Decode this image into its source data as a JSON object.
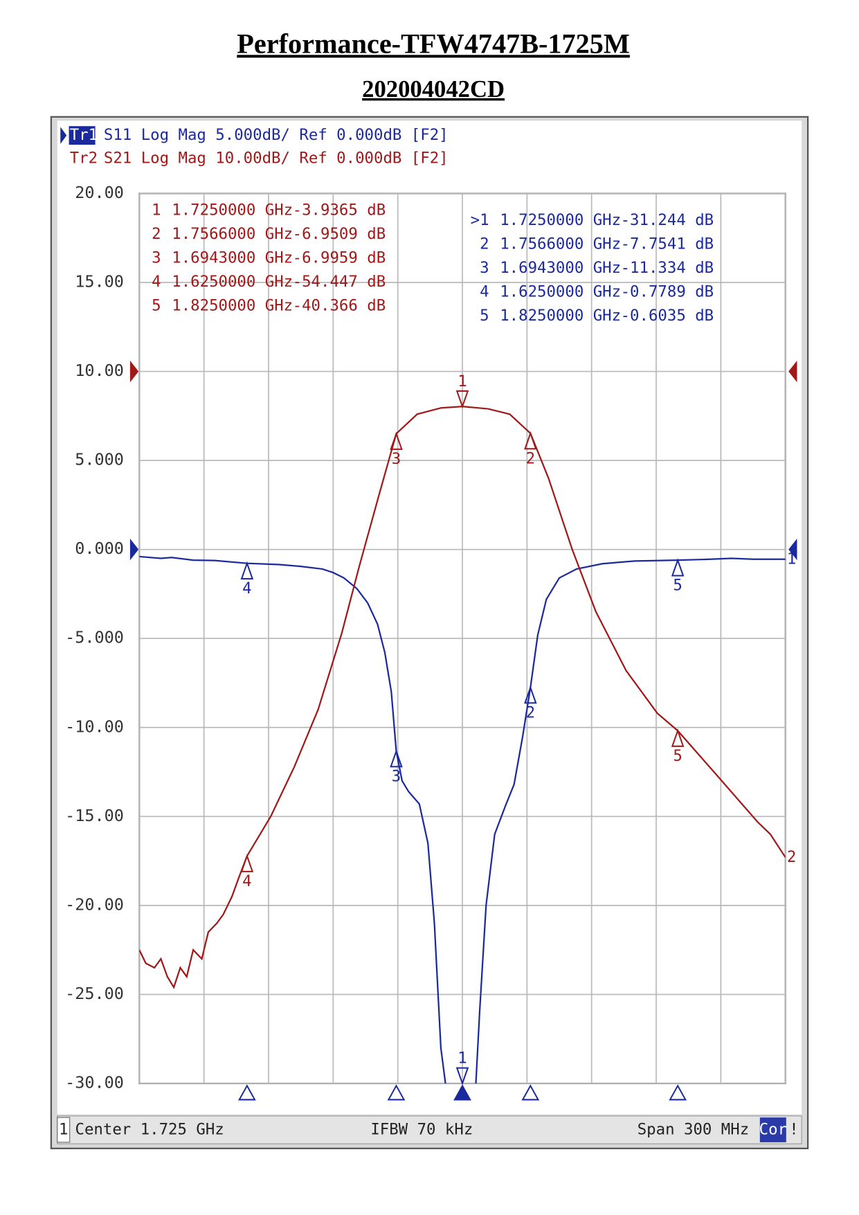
{
  "chart_data": {
    "type": "line",
    "title": "Performance-TFW4747B-1725M",
    "subtitle": "202004042CD",
    "xlim": [
      1.575,
      1.875
    ],
    "xticks": [
      1.575,
      1.605,
      1.635,
      1.665,
      1.695,
      1.725,
      1.755,
      1.785,
      1.815,
      1.845,
      1.875
    ],
    "ylim": [
      -30,
      20
    ],
    "yticks": [
      {
        "value": 20,
        "label": "20.00"
      },
      {
        "value": 15,
        "label": "15.00"
      },
      {
        "value": 10,
        "label": "10.00"
      },
      {
        "value": 5,
        "label": "5.000"
      },
      {
        "value": 0,
        "label": "0.000"
      },
      {
        "value": -5,
        "label": "-5.000"
      },
      {
        "value": -10,
        "label": "-10.00"
      },
      {
        "value": -15,
        "label": "-15.00"
      },
      {
        "value": -20,
        "label": "-20.00"
      },
      {
        "value": -25,
        "label": "-25.00"
      },
      {
        "value": -30,
        "label": "-30.00"
      }
    ],
    "y2lim": [
      -80,
      20
    ],
    "grid": true,
    "series": [
      {
        "id": "1",
        "tag": "Tr1",
        "header": "S11 Log Mag 5.000dB/ Ref 0.000dB [F2]",
        "color": "#1a2a9c",
        "ref_value": 0,
        "x": [
          1.575,
          1.585,
          1.59,
          1.6,
          1.61,
          1.625,
          1.64,
          1.65,
          1.66,
          1.665,
          1.67,
          1.676,
          1.681,
          1.6856,
          1.689,
          1.692,
          1.6943,
          1.697,
          1.7,
          1.705,
          1.709,
          1.712,
          1.715,
          1.718,
          1.725,
          1.731,
          1.733,
          1.736,
          1.74,
          1.745,
          1.749,
          1.753,
          1.7566,
          1.76,
          1.764,
          1.77,
          1.778,
          1.79,
          1.805,
          1.825,
          1.84,
          1.85,
          1.86,
          1.875
        ],
        "values": [
          -0.4,
          -0.5,
          -0.45,
          -0.6,
          -0.62,
          -0.7789,
          -0.85,
          -0.95,
          -1.1,
          -1.3,
          -1.6,
          -2.2,
          -3.0,
          -4.2,
          -5.8,
          -8.0,
          -11.334,
          -13.0,
          -13.6,
          -14.3,
          -16.5,
          -21,
          -28,
          -30.8,
          -31.244,
          -30.6,
          -26,
          -20,
          -16,
          -14.4,
          -13.2,
          -10.5,
          -7.7541,
          -4.8,
          -2.8,
          -1.6,
          -1.1,
          -0.8,
          -0.65,
          -0.6035,
          -0.55,
          -0.5,
          -0.55,
          -0.55
        ],
        "markers": [
          {
            "id": "1",
            "table_id": ">1",
            "x": 1.725,
            "value": -31.244,
            "freq_label": "1.7250000 GHz",
            "value_label": "-31.244 dB"
          },
          {
            "id": "2",
            "x": 1.7566,
            "value": -7.7541,
            "freq_label": "1.7566000 GHz",
            "value_label": "-7.7541 dB"
          },
          {
            "id": "3",
            "x": 1.6943,
            "value": -11.334,
            "freq_label": "1.6943000 GHz",
            "value_label": "-11.334 dB"
          },
          {
            "id": "4",
            "x": 1.625,
            "value": -0.7789,
            "freq_label": "1.6250000 GHz",
            "value_label": "-0.7789 dB"
          },
          {
            "id": "5",
            "x": 1.825,
            "value": -0.6035,
            "freq_label": "1.8250000 GHz",
            "value_label": "-0.6035 dB"
          }
        ]
      },
      {
        "id": "2",
        "tag": "Tr2",
        "header": "S21 Log Mag 10.00dB/ Ref 0.000dB [F2]",
        "color": "#a01818",
        "axis": "y2",
        "ref_value": 0,
        "x": [
          1.575,
          1.578,
          1.582,
          1.585,
          1.588,
          1.591,
          1.594,
          1.597,
          1.6,
          1.604,
          1.607,
          1.611,
          1.614,
          1.618,
          1.621,
          1.625,
          1.636,
          1.647,
          1.658,
          1.669,
          1.677,
          1.6866,
          1.6943,
          1.704,
          1.715,
          1.725,
          1.737,
          1.747,
          1.7566,
          1.765,
          1.776,
          1.787,
          1.801,
          1.8155,
          1.825,
          1.844,
          1.862,
          1.868,
          1.875
        ],
        "values": [
          -65,
          -66.5,
          -67,
          -66,
          -68,
          -69.2,
          -67,
          -68,
          -65,
          -66,
          -63,
          -62,
          -61,
          -59,
          -57,
          -54.447,
          -50,
          -44.4,
          -38,
          -29.4,
          -22,
          -13.6,
          -6.9959,
          -4.8,
          -4.1,
          -3.9365,
          -4.2,
          -4.8,
          -6.9509,
          -12,
          -20,
          -27,
          -33.6,
          -38.4,
          -40.366,
          -45.6,
          -50.6,
          -52,
          -54.6
        ],
        "markers": [
          {
            "id": "1",
            "x": 1.725,
            "value": -3.9365,
            "freq_label": "1.7250000 GHz",
            "value_label": "-3.9365 dB"
          },
          {
            "id": "2",
            "x": 1.7566,
            "value": -6.9509,
            "freq_label": "1.7566000 GHz",
            "value_label": "-6.9509 dB"
          },
          {
            "id": "3",
            "x": 1.6943,
            "value": -6.9959,
            "freq_label": "1.6943000 GHz",
            "value_label": "-6.9959 dB"
          },
          {
            "id": "4",
            "x": 1.625,
            "value": -54.447,
            "freq_label": "1.6250000 GHz",
            "value_label": "-54.447 dB"
          },
          {
            "id": "5",
            "x": 1.825,
            "value": -40.366,
            "freq_label": "1.8250000 GHz",
            "value_label": "-40.366 dB"
          }
        ]
      }
    ],
    "footer": {
      "channel": "1",
      "center": "Center 1.725 GHz",
      "ifbw": "IFBW 70 kHz",
      "span": "Span 300 MHz",
      "cor": "Cor",
      "alert": "!"
    }
  }
}
